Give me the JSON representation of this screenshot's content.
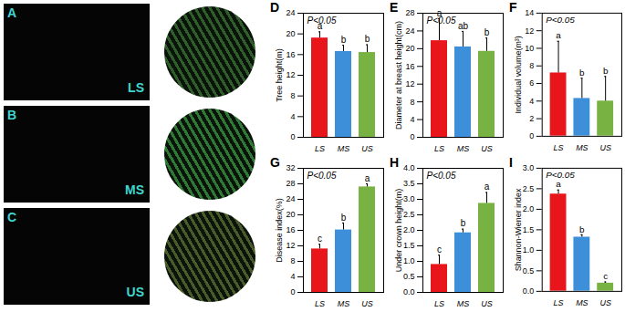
{
  "images": [
    {
      "label": "A",
      "tag": "LS"
    },
    {
      "label": "B",
      "tag": "MS"
    },
    {
      "label": "C",
      "tag": "US"
    }
  ],
  "chart_data": [
    {
      "title": "D",
      "type": "bar",
      "annotation": "P<0.05",
      "y_label": "Tree height(m)",
      "categories": [
        "LS",
        "MS",
        "US"
      ],
      "values": [
        19.2,
        16.6,
        16.4
      ],
      "errors": [
        1.2,
        1.2,
        1.5
      ],
      "significance": [
        "a",
        "b",
        "b"
      ],
      "colors": [
        "#e8151b",
        "#3c8fd8",
        "#78b243"
      ],
      "ylim": [
        0,
        24
      ],
      "yticks": [
        0,
        4,
        8,
        12,
        16,
        20,
        24
      ]
    },
    {
      "title": "E",
      "type": "bar",
      "annotation": "P<0.05",
      "y_label": "Diameter at breast height(cm)",
      "categories": [
        "LS",
        "MS",
        "US"
      ],
      "values": [
        21.8,
        20.4,
        19.4
      ],
      "errors": [
        5.0,
        3.5,
        3.0
      ],
      "significance": [
        "a",
        "ab",
        "b"
      ],
      "colors": [
        "#e8151b",
        "#3c8fd8",
        "#78b243"
      ],
      "ylim": [
        0,
        28
      ],
      "yticks": [
        0,
        4,
        8,
        12,
        16,
        20,
        24,
        28
      ]
    },
    {
      "title": "F",
      "type": "bar",
      "annotation": "P<0.05",
      "y_label": "Individual volume(m³)",
      "categories": [
        "LS",
        "MS",
        "US"
      ],
      "values": [
        7.2,
        4.3,
        4.0
      ],
      "errors": [
        3.6,
        2.3,
        2.8
      ],
      "significance": [
        "a",
        "b",
        "b"
      ],
      "colors": [
        "#e8151b",
        "#3c8fd8",
        "#78b243"
      ],
      "ylim": [
        0,
        14
      ],
      "yticks": [
        0,
        2,
        4,
        6,
        8,
        10,
        12,
        14
      ]
    },
    {
      "title": "G",
      "type": "bar",
      "annotation": "P<0.05",
      "y_label": "Disease index(%)",
      "categories": [
        "LS",
        "MS",
        "US"
      ],
      "values": [
        11.2,
        16.1,
        27.2
      ],
      "errors": [
        1.2,
        1.8,
        0.8
      ],
      "significance": [
        "c",
        "b",
        "a"
      ],
      "colors": [
        "#e8151b",
        "#3c8fd8",
        "#78b243"
      ],
      "ylim": [
        0,
        32
      ],
      "yticks": [
        0,
        4,
        8,
        12,
        16,
        20,
        24,
        28,
        32
      ]
    },
    {
      "title": "H",
      "type": "bar",
      "annotation": "P<0.05",
      "y_label": "Under crown height(m)",
      "categories": [
        "LS",
        "MS",
        "US"
      ],
      "values": [
        0.9,
        1.92,
        2.87
      ],
      "errors": [
        0.3,
        0.12,
        0.35
      ],
      "significance": [
        "c",
        "b",
        "a"
      ],
      "colors": [
        "#e8151b",
        "#3c8fd8",
        "#78b243"
      ],
      "ylim": [
        0,
        4
      ],
      "yticks": [
        {
          "value": 0,
          "label": "0.0"
        },
        {
          "value": 0.5,
          "label": "0.5"
        },
        {
          "value": 1,
          "label": "1.0"
        },
        {
          "value": 1.5,
          "label": "1.5"
        },
        {
          "value": 2,
          "label": "2.0"
        },
        {
          "value": 2.5,
          "label": "2.5"
        },
        {
          "value": 3,
          "label": "3.0"
        },
        {
          "value": 3.5,
          "label": "3.5"
        },
        {
          "value": 4,
          "label": "4.0"
        }
      ]
    },
    {
      "title": "I",
      "type": "bar",
      "annotation": "P<0.05",
      "y_label": "Shannon-Wiener index",
      "categories": [
        "LS",
        "MS",
        "US"
      ],
      "values": [
        2.37,
        1.32,
        0.2
      ],
      "errors": [
        0.1,
        0.06,
        0.03
      ],
      "significance": [
        "a",
        "b",
        "c"
      ],
      "colors": [
        "#e8151b",
        "#3c8fd8",
        "#78b243"
      ],
      "ylim": [
        0,
        3
      ],
      "yticks": [
        {
          "value": 0,
          "label": "0.0"
        },
        {
          "value": 0.5,
          "label": "0.5"
        },
        {
          "value": 1,
          "label": "1.0"
        },
        {
          "value": 1.5,
          "label": "1.5"
        },
        {
          "value": 2,
          "label": "2.0"
        },
        {
          "value": 2.5,
          "label": "2.5"
        },
        {
          "value": 3,
          "label": "3.0"
        }
      ]
    }
  ]
}
